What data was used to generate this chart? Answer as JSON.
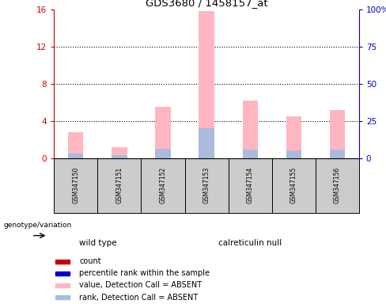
{
  "title": "GDS3680 / 1458157_at",
  "samples": [
    "GSM347150",
    "GSM347151",
    "GSM347152",
    "GSM347153",
    "GSM347154",
    "GSM347155",
    "GSM347156"
  ],
  "groups_ordered": [
    "wild type",
    "calreticulin null"
  ],
  "groups": {
    "wild type": [
      0,
      1
    ],
    "calreticulin null": [
      2,
      3,
      4,
      5,
      6
    ]
  },
  "group_colors": {
    "wild type": "#99EE99",
    "calreticulin null": "#55DD55"
  },
  "ylim_left": [
    0,
    16
  ],
  "ylim_right": [
    0,
    100
  ],
  "yticks_left": [
    0,
    4,
    8,
    12,
    16
  ],
  "ytick_labels_left": [
    "0",
    "4",
    "8",
    "12",
    "16"
  ],
  "ytick_labels_right": [
    "0",
    "25",
    "50",
    "75",
    "100%"
  ],
  "pink_bars": [
    2.8,
    1.2,
    5.5,
    15.8,
    6.2,
    4.5,
    5.2
  ],
  "blue_bars": [
    0.5,
    0.3,
    1.0,
    3.2,
    0.9,
    0.8,
    0.9
  ],
  "pink_bar_color": "#FFB6C1",
  "light_blue_bar_color": "#AABBDD",
  "legend_items": [
    "count",
    "percentile rank within the sample",
    "value, Detection Call = ABSENT",
    "rank, Detection Call = ABSENT"
  ],
  "legend_colors": [
    "#CC0000",
    "#0000CC",
    "#FFB6C1",
    "#AABBDD"
  ],
  "background_color": "#FFFFFF",
  "left_axis_color": "#CC0000",
  "right_axis_color": "#0000CC",
  "bar_width": 0.35,
  "sample_box_color": "#CCCCCC",
  "genotype_label": "genotype/variation"
}
